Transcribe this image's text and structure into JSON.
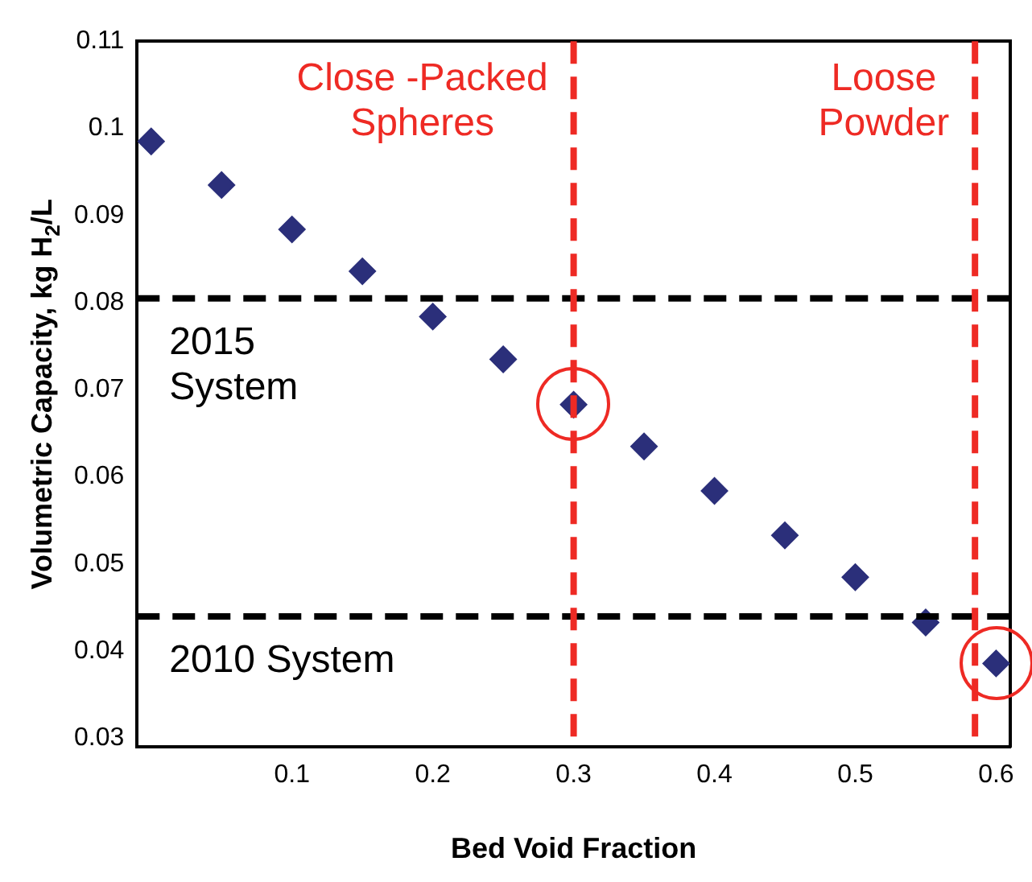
{
  "chart_data": {
    "type": "scatter",
    "xlabel": "Bed Void Fraction",
    "ylabel": "Volumetric Capacity, kg H$_{2}$/L",
    "x": [
      0,
      0.05,
      0.1,
      0.15,
      0.2,
      0.25,
      0.3,
      0.35,
      0.4,
      0.45,
      0.5,
      0.55,
      0.6
    ],
    "series": [
      {
        "color": "#2b2f7a",
        "values": [
          0.0985,
          0.0935,
          0.0884,
          0.0836,
          0.0784,
          0.0735,
          0.0683,
          0.0635,
          0.0584,
          0.0533,
          0.0485,
          0.0433,
          0.0386
        ]
      }
    ],
    "marker": "diamond",
    "grid": false,
    "legend": false,
    "xlim": [
      -0.01,
      0.61
    ],
    "xticks": [
      0.1,
      0.2,
      0.3,
      0.4,
      0.5,
      0.6
    ],
    "ylim": [
      0.029,
      0.11
    ],
    "yticks": [
      0.03,
      0.04,
      0.05,
      0.06,
      0.07,
      0.08,
      0.09,
      0.1,
      0.11
    ],
    "ref_lines": [
      {
        "axis": "y",
        "value": 0.0805,
        "label": "2015\nSystem",
        "color": "#000000",
        "line_style": "dashed"
      },
      {
        "axis": "y",
        "value": 0.044,
        "label": "2010 System",
        "color": "#000000",
        "line_style": "dashed"
      },
      {
        "axis": "x",
        "value": 0.3,
        "label": "Close -Packed\nSpheres",
        "color": "#ee2a24",
        "line_style": "dashed"
      },
      {
        "axis": "x",
        "value": 0.585,
        "label": "Loose\nPowder",
        "color": "#ee2a24",
        "line_style": "dashed"
      }
    ]
  }
}
